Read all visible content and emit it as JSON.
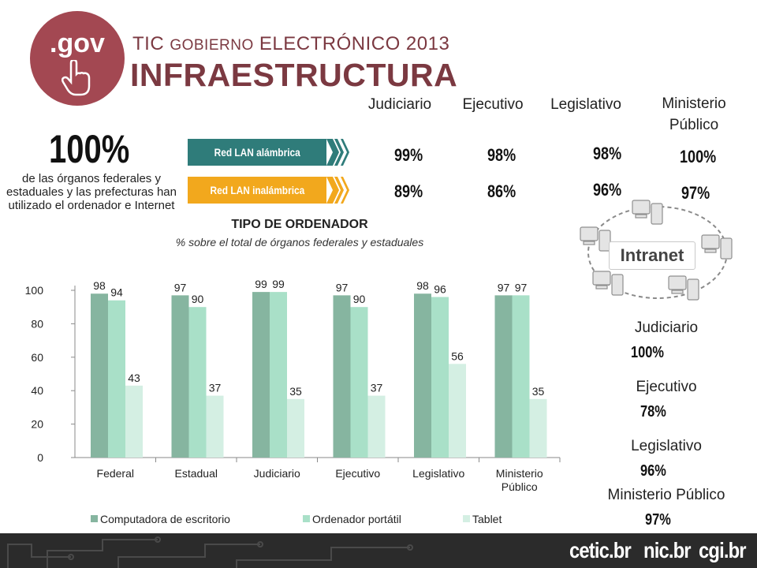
{
  "header": {
    "logo_text": ".gov",
    "title_top_1": "TIC ",
    "title_top_2": "GOBIERNO",
    "title_top_3": " ELECTRÓNICO 2013",
    "title_main": "INFRAESTRUCTURA"
  },
  "summary": {
    "big_value": "100%",
    "description": "de las órganos federales y estaduales y las prefecturas han utilizado el ordenador e Internet"
  },
  "network": {
    "columns": [
      "Judiciario",
      "Ejecutivo",
      "Legislativo",
      "Ministerio Público"
    ],
    "rows": [
      {
        "label": "Red LAN alámbrica",
        "color": "#2f7c7a",
        "values": [
          "99%",
          "98%",
          "98%",
          "100%"
        ]
      },
      {
        "label": "Red LAN inalámbrica",
        "color": "#f2a81d",
        "values": [
          "89%",
          "86%",
          "96%",
          "97%"
        ]
      }
    ]
  },
  "intranet": {
    "label": "Intranet",
    "items": [
      {
        "name": "Judiciario",
        "value": "100%"
      },
      {
        "name": "Ejecutivo",
        "value": "78%"
      },
      {
        "name": "Legislativo",
        "value": "96%"
      },
      {
        "name": "Ministerio Público",
        "value": "97%"
      }
    ]
  },
  "chart_data": {
    "type": "bar",
    "title": "TIPO DE ORDENADOR",
    "subtitle": "% sobre el total de órganos federales y estaduales",
    "categories": [
      "Federal",
      "Estadual",
      "Judiciario",
      "Ejecutivo",
      "Legislativo",
      "Ministerio Público"
    ],
    "series": [
      {
        "name": "Computadora de escritorio",
        "color": "#86b5a0",
        "values": [
          98,
          97,
          99,
          97,
          98,
          97
        ]
      },
      {
        "name": "Ordenador portátil",
        "color": "#a9e0c8",
        "values": [
          94,
          90,
          99,
          90,
          96,
          97
        ]
      },
      {
        "name": "Tablet",
        "color": "#d4efe3",
        "values": [
          43,
          37,
          35,
          37,
          56,
          35
        ]
      }
    ],
    "ylim": [
      0,
      100
    ],
    "yticks": [
      0,
      20,
      40,
      60,
      80,
      100
    ],
    "grid": false,
    "legend": "bottom"
  },
  "footer": {
    "brands": [
      "cetic.br",
      "nic.br",
      "cgi.br"
    ]
  }
}
